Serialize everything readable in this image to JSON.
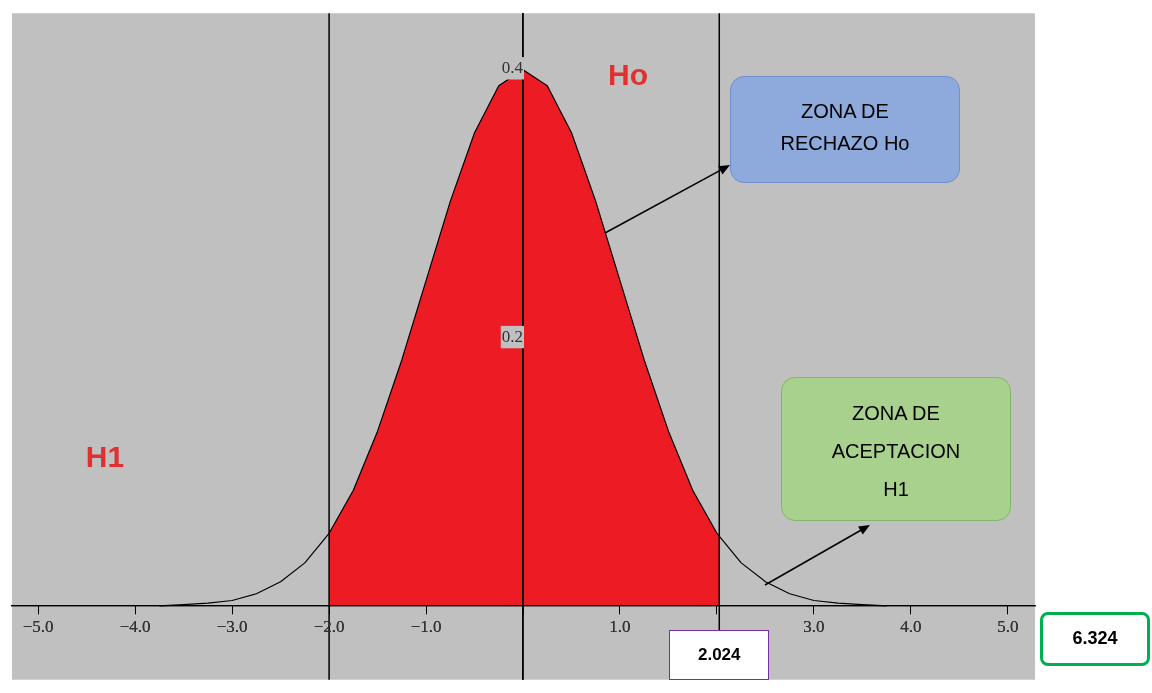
{
  "chart_data": {
    "type": "line",
    "xlim": [
      -5.27,
      5.28
    ],
    "ylim": [
      -0.055,
      0.441
    ],
    "xticks": [
      {
        "value": -5,
        "label": "−5.0"
      },
      {
        "value": -4,
        "label": "−4.0"
      },
      {
        "value": -3,
        "label": "−3.0"
      },
      {
        "value": -2,
        "label": "−2.0"
      },
      {
        "value": -1,
        "label": "−1.0"
      },
      {
        "value": 0,
        "label": null
      },
      {
        "value": 1,
        "label": "1.0"
      },
      {
        "value": 2,
        "label": null
      },
      {
        "value": 3,
        "label": "3.0"
      },
      {
        "value": 4,
        "label": "4.0"
      },
      {
        "value": 5,
        "label": "5.0"
      }
    ],
    "yticks": [
      0.2,
      0.4
    ],
    "grid": false,
    "legend": false,
    "marker": "none",
    "series": [
      {
        "type": "area",
        "color": "#ed1c24",
        "x": [
          -2,
          -1.75,
          -1.5,
          -1.25,
          -1,
          -0.75,
          -0.5,
          -0.25,
          0,
          0.25,
          0.5,
          0.75,
          1,
          1.25,
          1.5,
          1.75,
          2,
          2.024
        ],
        "values": [
          0.054,
          0.086,
          0.13,
          0.183,
          0.242,
          0.301,
          0.352,
          0.387,
          0.399,
          0.387,
          0.352,
          0.301,
          0.242,
          0.183,
          0.13,
          0.086,
          0.054,
          0.052
        ]
      },
      {
        "type": "line",
        "color": "#000000",
        "x": [
          -3.75,
          -3.5,
          -3.25,
          -3,
          -2.75,
          -2.5,
          -2.25,
          -2,
          -1.75,
          -1.5,
          -1.25,
          -1,
          -0.75,
          -0.5,
          -0.25,
          0,
          0.25,
          0.5,
          0.75,
          1,
          1.25,
          1.5,
          1.75,
          2,
          2.25,
          2.5,
          2.75,
          3,
          3.25,
          3.5,
          3.75
        ],
        "values": [
          0,
          0.001,
          0.002,
          0.004,
          0.009,
          0.018,
          0.032,
          0.054,
          0.086,
          0.13,
          0.183,
          0.242,
          0.301,
          0.352,
          0.387,
          0.399,
          0.387,
          0.352,
          0.301,
          0.242,
          0.183,
          0.13,
          0.086,
          0.054,
          0.032,
          0.018,
          0.009,
          0.004,
          0.002,
          0.001,
          0
        ]
      }
    ],
    "ref_lines": [
      {
        "axis": "x",
        "value": -2,
        "color": "#000000"
      },
      {
        "axis": "x",
        "value": 0,
        "color": "#000000"
      },
      {
        "axis": "x",
        "value": 2.024,
        "label": "2.024",
        "color": "#000000"
      }
    ],
    "annotations": [
      "Ho",
      "H1",
      "ZONA DE RECHAZO Ho",
      "ZONA DE ACEPTACION H1",
      "6.324"
    ]
  }
}
